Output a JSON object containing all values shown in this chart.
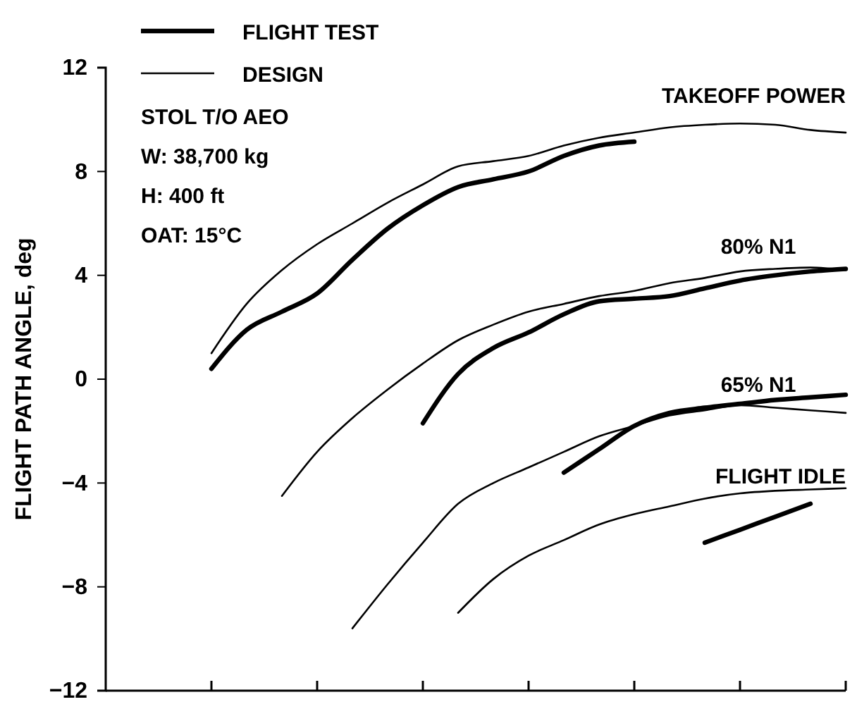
{
  "chart_data": {
    "type": "line",
    "ylabel": "FLIGHT PATH ANGLE, deg",
    "categories": [
      null,
      null,
      null,
      null,
      null,
      null,
      null,
      null,
      null,
      null,
      null,
      null,
      null,
      null,
      null,
      null,
      null,
      null,
      null,
      null,
      null,
      null
    ],
    "ylim": [
      -12,
      12
    ],
    "yticks": [
      -12,
      -8,
      -4,
      0,
      4,
      8,
      12
    ],
    "tick_labels": "y",
    "grid": false,
    "legend": "top left",
    "marker": "none",
    "line_style": "solid",
    "annotations": [
      "STOL T/O AEO",
      "W:  38,700 kg",
      "H:  400 ft",
      "OAT:  15°C",
      "TAKEOFF POWER",
      "80% N1",
      "65% N1",
      "FLIGHT IDLE"
    ],
    "series": [
      {
        "name": "FLIGHT TEST",
        "color": "#000000",
        "values": [
          null,
          null,
          null,
          0.4,
          1.9,
          2.6,
          3.3,
          4.6,
          5.8,
          6.7,
          7.4,
          7.7,
          8.0,
          8.6,
          9.0,
          9.15,
          null,
          null,
          null,
          null,
          null,
          null
        ]
      },
      {
        "name": "DESIGN",
        "color": "#000000",
        "values": [
          null,
          null,
          null,
          1.0,
          2.9,
          4.2,
          5.2,
          6.0,
          6.8,
          7.5,
          8.2,
          8.4,
          8.6,
          9.0,
          9.3,
          9.5,
          9.7,
          9.8,
          9.85,
          9.8,
          9.6,
          9.5
        ]
      },
      {
        "color": "#000000",
        "values": [
          null,
          null,
          null,
          null,
          null,
          null,
          null,
          null,
          null,
          -1.7,
          0.2,
          1.2,
          1.8,
          2.5,
          3.0,
          3.1,
          3.2,
          3.5,
          3.8,
          4.0,
          4.15,
          4.25
        ]
      },
      {
        "color": "#000000",
        "values": [
          null,
          null,
          null,
          null,
          null,
          -4.5,
          -2.8,
          -1.5,
          -0.4,
          0.6,
          1.5,
          2.1,
          2.6,
          2.9,
          3.2,
          3.4,
          3.7,
          3.9,
          4.15,
          4.25,
          4.3,
          4.2
        ]
      },
      {
        "color": "#000000",
        "values": [
          null,
          null,
          null,
          null,
          null,
          null,
          null,
          null,
          null,
          null,
          null,
          null,
          null,
          -3.6,
          -2.7,
          -1.8,
          -1.3,
          -1.1,
          -0.95,
          -0.8,
          -0.7,
          -0.6
        ]
      },
      {
        "color": "#000000",
        "values": [
          null,
          null,
          null,
          null,
          null,
          null,
          null,
          -9.6,
          -7.9,
          -6.3,
          -4.8,
          -4.0,
          -3.4,
          -2.8,
          -2.2,
          -1.8,
          -1.4,
          -1.2,
          -1.0,
          -1.1,
          -1.2,
          -1.3
        ]
      },
      {
        "color": "#000000",
        "values": [
          null,
          null,
          null,
          null,
          null,
          null,
          null,
          null,
          null,
          null,
          null,
          null,
          null,
          null,
          null,
          null,
          null,
          -6.3,
          -5.8,
          -5.3,
          -4.8,
          null
        ]
      },
      {
        "color": "#000000",
        "values": [
          null,
          null,
          null,
          null,
          null,
          null,
          null,
          null,
          null,
          null,
          -9.0,
          -7.7,
          -6.8,
          -6.2,
          -5.6,
          -5.2,
          -4.9,
          -4.6,
          -4.4,
          -4.3,
          -4.25,
          -4.2
        ]
      }
    ]
  }
}
